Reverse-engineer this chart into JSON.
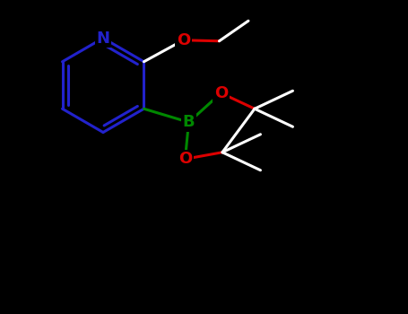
{
  "background_color": "#000000",
  "pyridine_color": "#2222cc",
  "N_color": "#2222cc",
  "carbon_color": "#ffffff",
  "oxygen_color": "#dd0000",
  "boron_color": "#008800",
  "bond_width": 2.2,
  "figsize": [
    4.55,
    3.5
  ],
  "dpi": 100,
  "xlim": [
    0,
    9.1
  ],
  "ylim": [
    0,
    7.0
  ]
}
